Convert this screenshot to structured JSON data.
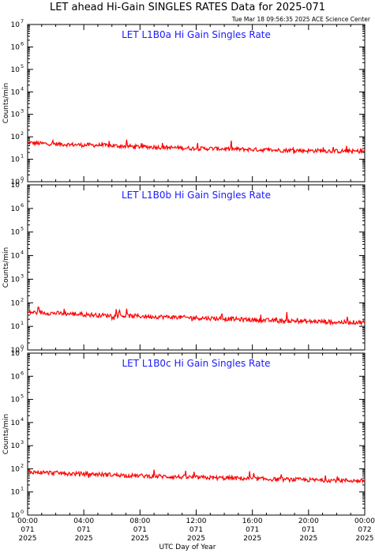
{
  "header": {
    "title": "LET ahead Hi-Gain SINGLES RATES Data for 2025-071",
    "timestamp": "Tue Mar 18 09:56:35 2025 ACE Science Center"
  },
  "colors": {
    "series": "#ff0000",
    "panel_title": "#1a1aff",
    "axis": "#000000"
  },
  "chart_data": [
    {
      "type": "line",
      "title": "LET L1B0a Hi Gain Singles Rate",
      "ylabel": "Counts/min",
      "yscale": "log",
      "ylim": [
        1,
        10000000
      ],
      "ytick_exponents": [
        0,
        1,
        2,
        3,
        4,
        5,
        6,
        7
      ],
      "xlim_hours": [
        0,
        24
      ],
      "x_hours": [
        0,
        1,
        2,
        3,
        4,
        5,
        6,
        7,
        8,
        9,
        10,
        11,
        12,
        13,
        14,
        15,
        16,
        17,
        18,
        19,
        20,
        21,
        22,
        23,
        24
      ],
      "series": [
        {
          "values": [
            55,
            50,
            48,
            45,
            43,
            42,
            40,
            38,
            36,
            35,
            33,
            32,
            30,
            30,
            29,
            28,
            27,
            26,
            25,
            25,
            24,
            24,
            23,
            23,
            22
          ]
        }
      ]
    },
    {
      "type": "line",
      "title": "LET L1B0b Hi Gain Singles Rate",
      "ylabel": "Counts/min",
      "yscale": "log",
      "ylim": [
        1,
        10000000
      ],
      "ytick_exponents": [
        0,
        1,
        2,
        3,
        4,
        5,
        6,
        7
      ],
      "xlim_hours": [
        0,
        24
      ],
      "x_hours": [
        0,
        1,
        2,
        3,
        4,
        5,
        6,
        7,
        8,
        9,
        10,
        11,
        12,
        13,
        14,
        15,
        16,
        17,
        18,
        19,
        20,
        21,
        22,
        23,
        24
      ],
      "series": [
        {
          "values": [
            40,
            38,
            36,
            34,
            32,
            30,
            29,
            28,
            27,
            26,
            25,
            24,
            23,
            22,
            21,
            20,
            19,
            18,
            17,
            17,
            16,
            16,
            15,
            15,
            15
          ]
        }
      ]
    },
    {
      "type": "line",
      "title": "LET L1B0c Hi Gain Singles Rate",
      "ylabel": "Counts/min",
      "yscale": "log",
      "ylim": [
        1,
        10000000
      ],
      "ytick_exponents": [
        0,
        1,
        2,
        3,
        4,
        5,
        6,
        7
      ],
      "xlim_hours": [
        0,
        24
      ],
      "x_hours": [
        0,
        1,
        2,
        3,
        4,
        5,
        6,
        7,
        8,
        9,
        10,
        11,
        12,
        13,
        14,
        15,
        16,
        17,
        18,
        19,
        20,
        21,
        22,
        23,
        24
      ],
      "series": [
        {
          "values": [
            75,
            70,
            66,
            62,
            60,
            58,
            55,
            52,
            50,
            48,
            46,
            44,
            42,
            41,
            40,
            39,
            37,
            36,
            35,
            34,
            33,
            32,
            32,
            31,
            30
          ]
        }
      ]
    }
  ],
  "x_axis": {
    "label": "UTC Day of Year",
    "ticks": [
      {
        "hour": 0,
        "time": "00:00",
        "doy": "071",
        "year": "2025"
      },
      {
        "hour": 4,
        "time": "04:00",
        "doy": "071",
        "year": "2025"
      },
      {
        "hour": 8,
        "time": "08:00",
        "doy": "071",
        "year": "2025"
      },
      {
        "hour": 12,
        "time": "12:00",
        "doy": "071",
        "year": "2025"
      },
      {
        "hour": 16,
        "time": "16:00",
        "doy": "071",
        "year": "2025"
      },
      {
        "hour": 20,
        "time": "20:00",
        "doy": "071",
        "year": "2025"
      },
      {
        "hour": 24,
        "time": "00:00",
        "doy": "072",
        "year": "2025"
      }
    ]
  }
}
